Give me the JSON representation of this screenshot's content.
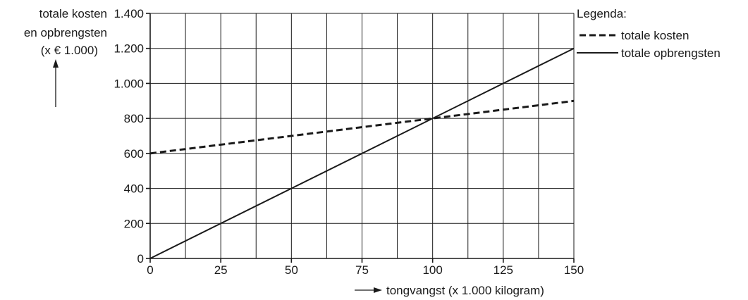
{
  "chart_data": {
    "type": "line",
    "ylabel_lines": [
      "totale kosten",
      "en opbrengsten",
      "(x € 1.000)"
    ],
    "xlabel": "tongvangst (x 1.000 kilogram)",
    "xlim": [
      0,
      150
    ],
    "ylim": [
      0,
      1400
    ],
    "x_ticks": [
      0,
      25,
      50,
      75,
      100,
      125,
      150
    ],
    "x_tick_labels": [
      "0",
      "25",
      "50",
      "75",
      "100",
      "125",
      "150"
    ],
    "x_grid_step": 12.5,
    "y_ticks": [
      0,
      200,
      400,
      600,
      800,
      1000,
      1200,
      1400
    ],
    "y_tick_labels": [
      "0",
      "200",
      "400",
      "600",
      "800",
      "1.000",
      "1.200",
      "1.400"
    ],
    "grid": true,
    "legend_title": "Legenda:",
    "legend_position": "top-right-outside",
    "series": [
      {
        "name": "totale kosten",
        "style": "dashed",
        "color": "#1a1a1a",
        "x": [
          0,
          150
        ],
        "y": [
          600,
          900
        ]
      },
      {
        "name": "totale opbrengsten",
        "style": "solid",
        "color": "#1a1a1a",
        "x": [
          0,
          150
        ],
        "y": [
          0,
          1200
        ]
      }
    ]
  }
}
